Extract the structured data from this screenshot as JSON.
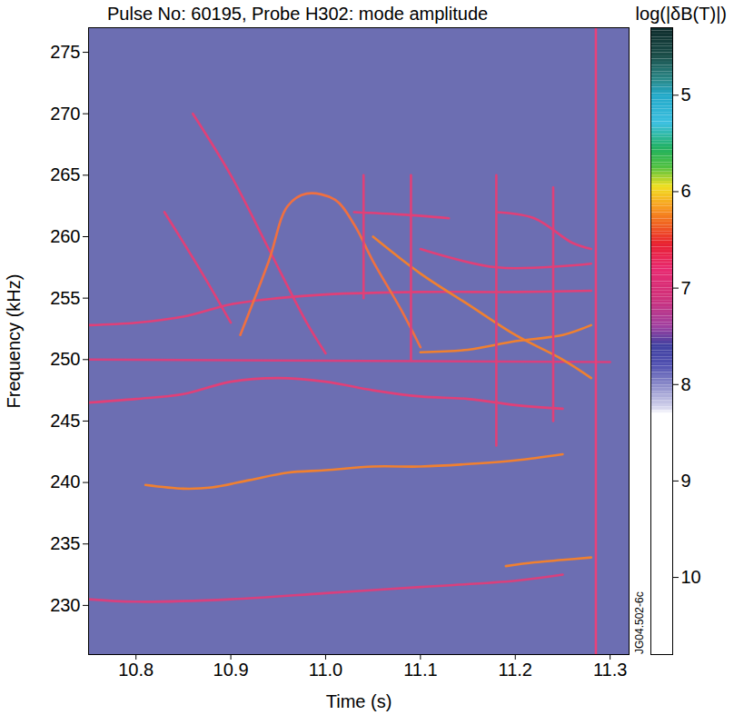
{
  "chart_data": {
    "type": "line",
    "title": "Pulse No: 60195, Probe H302: mode amplitude",
    "x_label": "Time (s)",
    "y_label": "Frequency (kHz)",
    "xlim": [
      10.75,
      11.32
    ],
    "xticks": [
      10.8,
      10.9,
      {
        "value": 11,
        "label": "11.0"
      },
      11.1,
      11.2,
      11.3
    ],
    "ylim": [
      226,
      277
    ],
    "yticks": [
      230,
      235,
      240,
      245,
      250,
      255,
      260,
      265,
      270,
      275
    ],
    "annotation": "JG04.502-6c",
    "colorbar": {
      "label": "log(|δB(T)|)",
      "range": [
        4.3,
        10.8
      ],
      "ticks": [
        5,
        6,
        7,
        8,
        9,
        10
      ]
    },
    "series": [
      {
        "color": "#d8407e",
        "x": [
          10.75,
          10.8,
          10.9,
          11.0,
          11.1,
          11.2,
          11.25
        ],
        "values": [
          230.5,
          230.3,
          230.5,
          231,
          231.5,
          232,
          232.5
        ]
      },
      {
        "color": "#f08030",
        "x": [
          11.19,
          11.22,
          11.25,
          11.28
        ],
        "values": [
          233.2,
          233.5,
          233.7,
          233.9
        ]
      },
      {
        "color": "#f08030",
        "x": [
          10.81,
          10.85,
          10.88,
          10.92,
          10.96,
          11.0,
          11.05,
          11.1,
          11.15,
          11.2,
          11.25
        ],
        "values": [
          239.8,
          239.5,
          239.6,
          240.2,
          240.8,
          241,
          241.3,
          241.3,
          241.5,
          241.8,
          242.3
        ]
      },
      {
        "color": "#e04078",
        "x": [
          10.75,
          10.8,
          10.85,
          10.9,
          10.95,
          11.0,
          11.05,
          11.1,
          11.15,
          11.2,
          11.25
        ],
        "values": [
          246.5,
          246.8,
          247.2,
          248.2,
          248.5,
          248.2,
          247.5,
          247,
          246.8,
          246.3,
          246
        ]
      },
      {
        "color": "#d8407e",
        "x": [
          10.75,
          11.3
        ],
        "values": [
          250,
          249.8
        ]
      },
      {
        "color": "#e04078",
        "x": [
          10.75,
          10.8,
          10.85,
          10.9,
          10.95,
          11.0,
          11.1,
          11.2,
          11.28
        ],
        "values": [
          252.8,
          253,
          253.5,
          254.5,
          255,
          255.3,
          255.5,
          255.5,
          255.6
        ]
      },
      {
        "color": "#e04078",
        "x": [
          10.86,
          10.9,
          10.94,
          10.98,
          11.0
        ],
        "values": [
          270,
          265,
          259,
          253,
          250.5
        ]
      },
      {
        "color": "#e04078",
        "x": [
          10.83,
          10.87,
          10.9
        ],
        "values": [
          262,
          257,
          253
        ]
      },
      {
        "color": "#f07040",
        "x": [
          10.91,
          10.94,
          10.96,
          10.98,
          11.01,
          11.03,
          11.05,
          11.08,
          11.1
        ],
        "values": [
          252,
          258,
          262.5,
          263.5,
          263,
          261,
          258,
          254,
          251
        ]
      },
      {
        "color": "#f08030",
        "x": [
          11.1,
          11.15,
          11.2,
          11.25,
          11.28
        ],
        "values": [
          250.6,
          250.8,
          251.5,
          252,
          252.8
        ]
      },
      {
        "color": "#f08030",
        "x": [
          11.05,
          11.1,
          11.15,
          11.2,
          11.25,
          11.28
        ],
        "values": [
          260,
          257,
          254.5,
          252,
          250,
          248.5
        ]
      },
      {
        "color": "#e04078",
        "x": [
          11.03,
          11.08,
          11.13
        ],
        "values": [
          262,
          261.8,
          261.5
        ]
      },
      {
        "color": "#e04078",
        "x": [
          11.18,
          11.22,
          11.26,
          11.28
        ],
        "values": [
          262,
          261.5,
          259.5,
          259
        ]
      },
      {
        "color": "#e04078",
        "x": [
          11.1,
          11.18,
          11.28
        ],
        "values": [
          259,
          257.5,
          257.8
        ]
      },
      {
        "color": "#e04078",
        "x": [
          11.04,
          11.04
        ],
        "values": [
          255,
          265
        ]
      },
      {
        "color": "#e04078",
        "x": [
          11.09,
          11.09
        ],
        "values": [
          250,
          265
        ]
      },
      {
        "color": "#e04078",
        "x": [
          11.18,
          11.18
        ],
        "values": [
          243,
          265
        ]
      },
      {
        "color": "#e04078",
        "x": [
          11.24,
          11.24
        ],
        "values": [
          245,
          264
        ]
      },
      {
        "color": "#e8407a",
        "x": [
          11.285,
          11.285
        ],
        "values": [
          226,
          277
        ]
      }
    ]
  }
}
